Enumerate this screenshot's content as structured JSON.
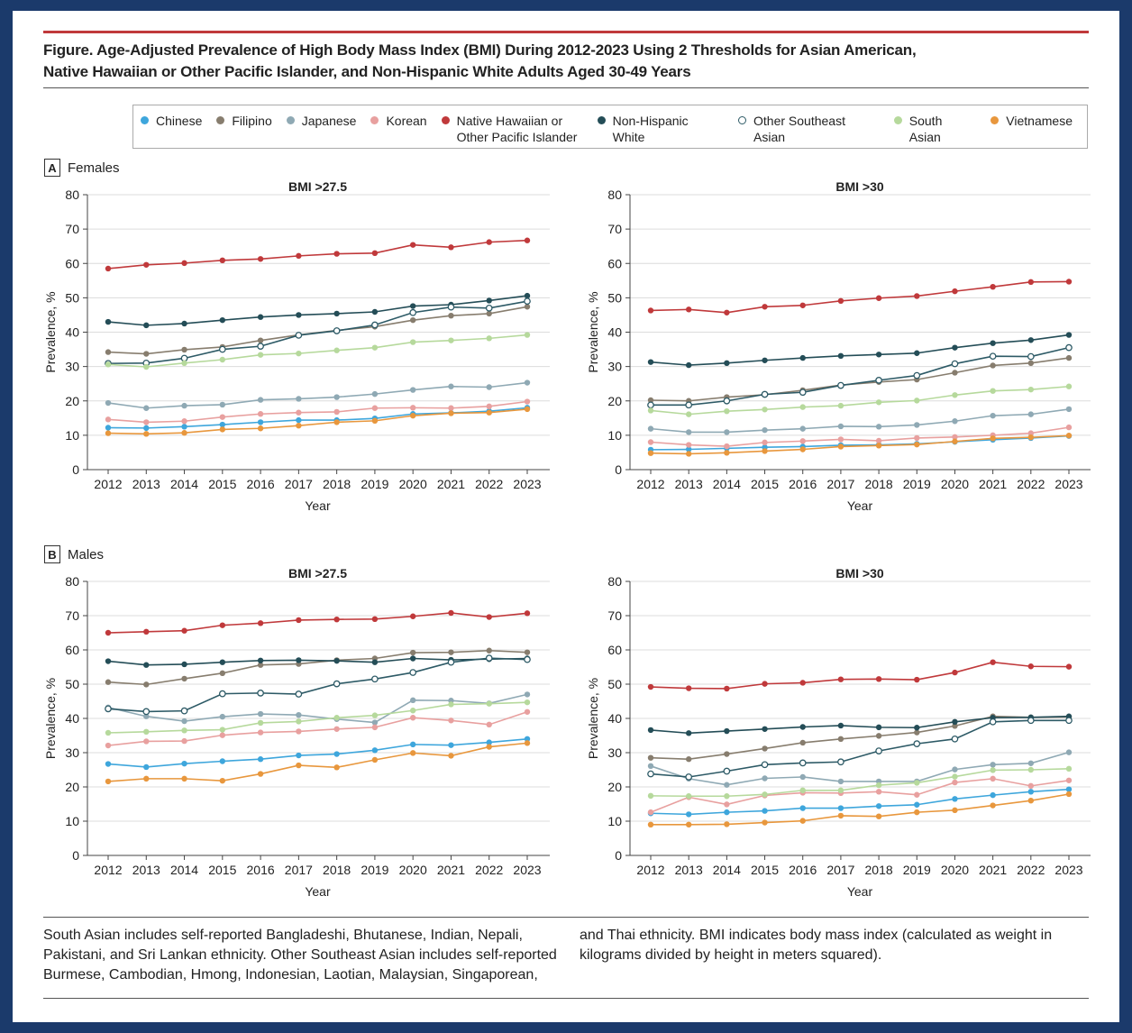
{
  "figure": {
    "title_line1": "Figure. Age-Adjusted Prevalence of High Body Mass Index (BMI) During 2012-2023 Using 2 Thresholds for Asian American,",
    "title_line2": "Native Hawaiian or Other Pacific Islander, and Non-Hispanic White Adults Aged 30-49 Years",
    "accent_color": "#c0393b",
    "panel_a": {
      "letter": "A",
      "label": "Females"
    },
    "panel_b": {
      "letter": "B",
      "label": "Males"
    },
    "footnote_left": "South Asian includes self-reported Bangladeshi, Bhutanese, Indian, Nepali, Pakistani, and Sri Lankan ethnicity. Other Southeast Asian includes self-reported Burmese, Cambodian, Hmong, Indonesian, Laotian, Malaysian, Singaporean,",
    "footnote_right": "and Thai ethnicity. BMI indicates body mass index (calculated as weight in kilograms divided by height in meters squared)."
  },
  "legend": [
    {
      "name": "Chinese",
      "color": "#3ea6dc",
      "hollow": false
    },
    {
      "name": "Filipino",
      "color": "#877d6e",
      "hollow": false
    },
    {
      "name": "Japanese",
      "color": "#8fa9b4",
      "hollow": false
    },
    {
      "name": "Korean",
      "color": "#e8a09f",
      "hollow": false
    },
    {
      "name": "Native Hawaiian or Other Pacific Islander",
      "color": "#c0393b",
      "hollow": false
    },
    {
      "name": "Non-Hispanic White",
      "color": "#244d57",
      "hollow": false
    },
    {
      "name": "Other Southeast Asian",
      "color": "#2d5a66",
      "hollow": true
    },
    {
      "name": "South Asian",
      "color": "#b6d99c",
      "hollow": false
    },
    {
      "name": "Vietnamese",
      "color": "#e8973d",
      "hollow": false
    }
  ],
  "chart_data": [
    {
      "type": "line",
      "panel": "A",
      "title": "BMI >27.5",
      "xlabel": "Year",
      "ylabel": "Prevalence, %",
      "ylim": [
        0,
        80
      ],
      "yticks": [
        0,
        10,
        20,
        30,
        40,
        50,
        60,
        70,
        80
      ],
      "grid": true,
      "legend": "top",
      "x": [
        2012,
        2013,
        2014,
        2015,
        2016,
        2017,
        2018,
        2019,
        2020,
        2021,
        2022,
        2023
      ],
      "series": [
        {
          "name": "Chinese",
          "values": [
            12.2,
            12.1,
            12.5,
            13.1,
            13.8,
            14.4,
            14.4,
            14.9,
            16.2,
            16.5,
            17.0,
            18.0
          ]
        },
        {
          "name": "Filipino",
          "values": [
            34.2,
            33.7,
            34.9,
            35.7,
            37.6,
            39.2,
            40.5,
            41.6,
            43.5,
            44.8,
            45.4,
            47.4
          ]
        },
        {
          "name": "Japanese",
          "values": [
            19.4,
            17.9,
            18.6,
            18.9,
            20.3,
            20.6,
            21.1,
            22.0,
            23.2,
            24.2,
            24.0,
            25.3
          ]
        },
        {
          "name": "Korean",
          "values": [
            14.6,
            13.8,
            14.1,
            15.3,
            16.2,
            16.6,
            16.8,
            17.9,
            18.0,
            17.9,
            18.4,
            19.8
          ]
        },
        {
          "name": "Native Hawaiian or Other Pacific Islander",
          "values": [
            58.5,
            59.6,
            60.1,
            60.9,
            61.3,
            62.2,
            62.8,
            63.0,
            65.4,
            64.7,
            66.2,
            66.7
          ]
        },
        {
          "name": "Non-Hispanic White",
          "values": [
            43.0,
            42.0,
            42.5,
            43.5,
            44.4,
            45.0,
            45.4,
            45.9,
            47.6,
            48.0,
            49.2,
            50.6
          ]
        },
        {
          "name": "Other Southeast Asian",
          "values": [
            30.9,
            31.0,
            32.4,
            35.0,
            35.9,
            39.1,
            40.4,
            42.1,
            45.7,
            47.3,
            47.0,
            49.0
          ]
        },
        {
          "name": "South Asian",
          "values": [
            30.6,
            29.9,
            31.0,
            32.0,
            33.4,
            33.8,
            34.7,
            35.5,
            37.1,
            37.6,
            38.2,
            39.2
          ]
        },
        {
          "name": "Vietnamese",
          "values": [
            10.6,
            10.4,
            10.7,
            11.7,
            12.0,
            12.8,
            13.8,
            14.2,
            15.7,
            16.4,
            16.6,
            17.6
          ]
        }
      ]
    },
    {
      "type": "line",
      "panel": "A",
      "title": "BMI >30",
      "xlabel": "Year",
      "ylabel": "Prevalence, %",
      "ylim": [
        0,
        80
      ],
      "yticks": [
        0,
        10,
        20,
        30,
        40,
        50,
        60,
        70,
        80
      ],
      "grid": true,
      "legend": "top",
      "x": [
        2012,
        2013,
        2014,
        2015,
        2016,
        2017,
        2018,
        2019,
        2020,
        2021,
        2022,
        2023
      ],
      "series": [
        {
          "name": "Chinese",
          "values": [
            5.8,
            5.9,
            6.2,
            6.5,
            6.7,
            7.1,
            7.2,
            7.5,
            8.1,
            8.7,
            9.2,
            9.8
          ]
        },
        {
          "name": "Filipino",
          "values": [
            20.2,
            20.0,
            21.1,
            21.8,
            23.1,
            24.6,
            25.5,
            26.2,
            28.2,
            30.3,
            31.0,
            32.5
          ]
        },
        {
          "name": "Japanese",
          "values": [
            11.9,
            10.9,
            10.9,
            11.5,
            11.9,
            12.6,
            12.5,
            13.0,
            14.1,
            15.7,
            16.1,
            17.6
          ]
        },
        {
          "name": "Korean",
          "values": [
            8.0,
            7.2,
            6.8,
            7.9,
            8.3,
            8.8,
            8.4,
            9.2,
            9.5,
            10.0,
            10.6,
            12.3
          ]
        },
        {
          "name": "Native Hawaiian or Other Pacific Islander",
          "values": [
            46.3,
            46.6,
            45.7,
            47.4,
            47.8,
            49.1,
            49.9,
            50.5,
            51.9,
            53.2,
            54.6,
            54.7
          ]
        },
        {
          "name": "Non-Hispanic White",
          "values": [
            31.3,
            30.4,
            31.0,
            31.8,
            32.5,
            33.1,
            33.5,
            33.9,
            35.5,
            36.8,
            37.7,
            39.2
          ]
        },
        {
          "name": "Other Southeast Asian",
          "values": [
            18.8,
            18.8,
            20.0,
            21.9,
            22.5,
            24.5,
            26.0,
            27.4,
            30.8,
            33.0,
            32.9,
            35.5
          ]
        },
        {
          "name": "South Asian",
          "values": [
            17.2,
            16.1,
            17.0,
            17.5,
            18.2,
            18.6,
            19.6,
            20.1,
            21.7,
            22.9,
            23.3,
            24.2
          ]
        },
        {
          "name": "Vietnamese",
          "values": [
            4.8,
            4.6,
            4.9,
            5.4,
            5.9,
            6.7,
            7.0,
            7.3,
            8.2,
            9.1,
            9.4,
            9.9
          ]
        }
      ]
    },
    {
      "type": "line",
      "panel": "B",
      "title": "BMI >27.5",
      "xlabel": "Year",
      "ylabel": "Prevalence, %",
      "ylim": [
        0,
        80
      ],
      "yticks": [
        0,
        10,
        20,
        30,
        40,
        50,
        60,
        70,
        80
      ],
      "grid": true,
      "legend": "top",
      "x": [
        2012,
        2013,
        2014,
        2015,
        2016,
        2017,
        2018,
        2019,
        2020,
        2021,
        2022,
        2023
      ],
      "series": [
        {
          "name": "Chinese",
          "values": [
            26.7,
            25.8,
            26.8,
            27.5,
            28.1,
            29.2,
            29.6,
            30.7,
            32.4,
            32.2,
            33.0,
            34.0
          ]
        },
        {
          "name": "Filipino",
          "values": [
            50.6,
            49.9,
            51.6,
            53.2,
            55.6,
            55.9,
            57.0,
            57.5,
            59.2,
            59.3,
            59.8,
            59.3
          ]
        },
        {
          "name": "Japanese",
          "values": [
            43.2,
            40.6,
            39.2,
            40.5,
            41.3,
            41.0,
            39.8,
            38.8,
            45.3,
            45.2,
            44.4,
            47.0
          ]
        },
        {
          "name": "Korean",
          "values": [
            32.1,
            33.3,
            33.4,
            35.1,
            35.9,
            36.2,
            36.9,
            37.4,
            40.2,
            39.4,
            38.2,
            41.9
          ]
        },
        {
          "name": "Native Hawaiian or Other Pacific Islander",
          "values": [
            65.0,
            65.3,
            65.6,
            67.2,
            67.8,
            68.7,
            68.9,
            69.0,
            69.8,
            70.8,
            69.6,
            70.7
          ]
        },
        {
          "name": "Non-Hispanic White",
          "values": [
            56.7,
            55.6,
            55.8,
            56.4,
            56.9,
            57.0,
            56.8,
            56.4,
            57.5,
            57.1,
            57.3,
            57.5
          ]
        },
        {
          "name": "Other Southeast Asian",
          "values": [
            42.8,
            42.0,
            42.2,
            47.2,
            47.4,
            47.1,
            50.1,
            51.5,
            53.4,
            56.4,
            57.6,
            57.2
          ]
        },
        {
          "name": "South Asian",
          "values": [
            35.8,
            36.1,
            36.5,
            36.7,
            38.7,
            39.1,
            40.2,
            40.9,
            42.3,
            44.1,
            44.3,
            44.7
          ]
        },
        {
          "name": "Vietnamese",
          "values": [
            21.6,
            22.4,
            22.4,
            21.8,
            23.8,
            26.3,
            25.7,
            27.9,
            29.9,
            29.1,
            31.7,
            32.8
          ]
        }
      ]
    },
    {
      "type": "line",
      "panel": "B",
      "title": "BMI >30",
      "xlabel": "Year",
      "ylabel": "Prevalence, %",
      "ylim": [
        0,
        80
      ],
      "yticks": [
        0,
        10,
        20,
        30,
        40,
        50,
        60,
        70,
        80
      ],
      "grid": true,
      "legend": "top",
      "x": [
        2012,
        2013,
        2014,
        2015,
        2016,
        2017,
        2018,
        2019,
        2020,
        2021,
        2022,
        2023
      ],
      "series": [
        {
          "name": "Chinese",
          "values": [
            12.3,
            12.0,
            12.6,
            13.0,
            13.8,
            13.8,
            14.4,
            14.8,
            16.5,
            17.6,
            18.6,
            19.3
          ]
        },
        {
          "name": "Filipino",
          "values": [
            28.5,
            28.1,
            29.6,
            31.2,
            32.9,
            34.0,
            34.9,
            35.9,
            37.8,
            40.6,
            40.3,
            40.4
          ]
        },
        {
          "name": "Japanese",
          "values": [
            26.1,
            22.4,
            20.6,
            22.5,
            22.9,
            21.6,
            21.6,
            21.6,
            25.1,
            26.5,
            26.9,
            30.1
          ]
        },
        {
          "name": "Korean",
          "values": [
            12.6,
            17.0,
            14.9,
            17.5,
            18.3,
            18.2,
            18.6,
            17.7,
            21.3,
            22.4,
            20.3,
            21.9
          ]
        },
        {
          "name": "Native Hawaiian or Other Pacific Islander",
          "values": [
            49.2,
            48.8,
            48.7,
            50.1,
            50.4,
            51.4,
            51.5,
            51.3,
            53.4,
            56.4,
            55.2,
            55.1
          ]
        },
        {
          "name": "Non-Hispanic White",
          "values": [
            36.6,
            35.7,
            36.3,
            36.9,
            37.5,
            37.9,
            37.4,
            37.3,
            39.0,
            40.2,
            40.3,
            40.6
          ]
        },
        {
          "name": "Other Southeast Asian",
          "values": [
            23.8,
            22.9,
            24.6,
            26.5,
            27.0,
            27.3,
            30.5,
            32.6,
            34.0,
            39.0,
            39.4,
            39.4
          ]
        },
        {
          "name": "South Asian",
          "values": [
            17.4,
            17.3,
            17.3,
            17.8,
            19.0,
            19.0,
            20.5,
            21.2,
            23.0,
            24.9,
            25.0,
            25.3
          ]
        },
        {
          "name": "Vietnamese",
          "values": [
            9.0,
            9.0,
            9.1,
            9.6,
            10.1,
            11.6,
            11.4,
            12.6,
            13.2,
            14.6,
            16.0,
            17.9
          ]
        }
      ]
    }
  ]
}
